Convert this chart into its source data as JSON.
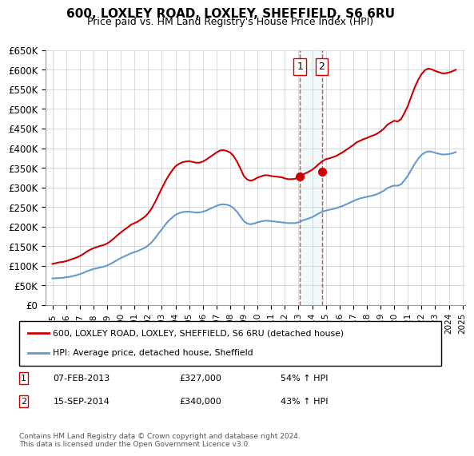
{
  "title": "600, LOXLEY ROAD, LOXLEY, SHEFFIELD, S6 6RU",
  "subtitle": "Price paid vs. HM Land Registry's House Price Index (HPI)",
  "ylabel_ticks": [
    "£0",
    "£50K",
    "£100K",
    "£150K",
    "£200K",
    "£250K",
    "£300K",
    "£350K",
    "£400K",
    "£450K",
    "£500K",
    "£550K",
    "£600K",
    "£650K"
  ],
  "ylim": [
    0,
    650000
  ],
  "yticks": [
    0,
    50000,
    100000,
    150000,
    200000,
    250000,
    300000,
    350000,
    400000,
    450000,
    500000,
    550000,
    600000,
    650000
  ],
  "background_color": "#ffffff",
  "grid_color": "#cccccc",
  "sale1_date": "07-FEB-2013",
  "sale1_price": 327000,
  "sale1_label": "1",
  "sale1_pct": "54% ↑ HPI",
  "sale2_date": "15-SEP-2014",
  "sale2_price": 340000,
  "sale2_label": "2",
  "sale2_pct": "43% ↑ HPI",
  "sale1_x": 2013.1,
  "sale2_x": 2014.7,
  "legend_line1": "600, LOXLEY ROAD, LOXLEY, SHEFFIELD, S6 6RU (detached house)",
  "legend_line2": "HPI: Average price, detached house, Sheffield",
  "footer": "Contains HM Land Registry data © Crown copyright and database right 2024.\nThis data is licensed under the Open Government Licence v3.0.",
  "red_color": "#cc0000",
  "blue_color": "#6699cc",
  "hpi_x": [
    1995.0,
    1995.25,
    1995.5,
    1995.75,
    1996.0,
    1996.25,
    1996.5,
    1996.75,
    1997.0,
    1997.25,
    1997.5,
    1997.75,
    1998.0,
    1998.25,
    1998.5,
    1998.75,
    1999.0,
    1999.25,
    1999.5,
    1999.75,
    2000.0,
    2000.25,
    2000.5,
    2000.75,
    2001.0,
    2001.25,
    2001.5,
    2001.75,
    2002.0,
    2002.25,
    2002.5,
    2002.75,
    2003.0,
    2003.25,
    2003.5,
    2003.75,
    2004.0,
    2004.25,
    2004.5,
    2004.75,
    2005.0,
    2005.25,
    2005.5,
    2005.75,
    2006.0,
    2006.25,
    2006.5,
    2006.75,
    2007.0,
    2007.25,
    2007.5,
    2007.75,
    2008.0,
    2008.25,
    2008.5,
    2008.75,
    2009.0,
    2009.25,
    2009.5,
    2009.75,
    2010.0,
    2010.25,
    2010.5,
    2010.75,
    2011.0,
    2011.25,
    2011.5,
    2011.75,
    2012.0,
    2012.25,
    2012.5,
    2012.75,
    2013.0,
    2013.25,
    2013.5,
    2013.75,
    2014.0,
    2014.25,
    2014.5,
    2014.75,
    2015.0,
    2015.25,
    2015.5,
    2015.75,
    2016.0,
    2016.25,
    2016.5,
    2016.75,
    2017.0,
    2017.25,
    2017.5,
    2017.75,
    2018.0,
    2018.25,
    2018.5,
    2018.75,
    2019.0,
    2019.25,
    2019.5,
    2019.75,
    2020.0,
    2020.25,
    2020.5,
    2020.75,
    2021.0,
    2021.25,
    2021.5,
    2021.75,
    2022.0,
    2022.25,
    2022.5,
    2022.75,
    2023.0,
    2023.25,
    2023.5,
    2023.75,
    2024.0,
    2024.25,
    2024.5
  ],
  "hpi_y": [
    68000,
    68500,
    69000,
    69500,
    71000,
    72000,
    74000,
    76000,
    79000,
    82000,
    86000,
    89000,
    92000,
    94000,
    96000,
    98000,
    101000,
    105000,
    110000,
    115000,
    120000,
    124000,
    128000,
    132000,
    135000,
    138000,
    142000,
    146000,
    152000,
    160000,
    170000,
    182000,
    193000,
    205000,
    215000,
    223000,
    230000,
    234000,
    237000,
    238000,
    238000,
    237000,
    236000,
    236000,
    238000,
    241000,
    245000,
    249000,
    253000,
    256000,
    257000,
    256000,
    253000,
    247000,
    238000,
    226000,
    214000,
    208000,
    206000,
    208000,
    211000,
    213000,
    215000,
    215000,
    214000,
    213000,
    212000,
    211000,
    210000,
    209000,
    209000,
    209000,
    211000,
    215000,
    218000,
    221000,
    224000,
    229000,
    234000,
    238000,
    241000,
    243000,
    245000,
    247000,
    250000,
    253000,
    257000,
    261000,
    265000,
    269000,
    272000,
    274000,
    276000,
    278000,
    280000,
    283000,
    287000,
    292000,
    298000,
    302000,
    305000,
    304000,
    308000,
    318000,
    330000,
    345000,
    360000,
    373000,
    383000,
    389000,
    392000,
    391000,
    388000,
    386000,
    384000,
    384000,
    385000,
    387000,
    390000
  ],
  "property_x": [
    1995.0,
    1995.25,
    1995.5,
    1995.75,
    1996.0,
    1996.25,
    1996.5,
    1996.75,
    1997.0,
    1997.25,
    1997.5,
    1997.75,
    1998.0,
    1998.25,
    1998.5,
    1998.75,
    1999.0,
    1999.25,
    1999.5,
    1999.75,
    2000.0,
    2000.25,
    2000.5,
    2000.75,
    2001.0,
    2001.25,
    2001.5,
    2001.75,
    2002.0,
    2002.25,
    2002.5,
    2002.75,
    2003.0,
    2003.25,
    2003.5,
    2003.75,
    2004.0,
    2004.25,
    2004.5,
    2004.75,
    2005.0,
    2005.25,
    2005.5,
    2005.75,
    2006.0,
    2006.25,
    2006.5,
    2006.75,
    2007.0,
    2007.25,
    2007.5,
    2007.75,
    2008.0,
    2008.25,
    2008.5,
    2008.75,
    2009.0,
    2009.25,
    2009.5,
    2009.75,
    2010.0,
    2010.25,
    2010.5,
    2010.75,
    2011.0,
    2011.25,
    2011.5,
    2011.75,
    2012.0,
    2012.25,
    2012.5,
    2012.75,
    2013.0,
    2013.25,
    2013.5,
    2013.75,
    2014.0,
    2014.25,
    2014.5,
    2014.75,
    2015.0,
    2015.25,
    2015.5,
    2015.75,
    2016.0,
    2016.25,
    2016.5,
    2016.75,
    2017.0,
    2017.25,
    2017.5,
    2017.75,
    2018.0,
    2018.25,
    2018.5,
    2018.75,
    2019.0,
    2019.25,
    2019.5,
    2019.75,
    2020.0,
    2020.25,
    2020.5,
    2020.75,
    2021.0,
    2021.25,
    2021.5,
    2021.75,
    2022.0,
    2022.25,
    2022.5,
    2022.75,
    2023.0,
    2023.25,
    2023.5,
    2023.75,
    2024.0,
    2024.25,
    2024.5
  ],
  "property_y": [
    105000,
    107000,
    109000,
    110000,
    112000,
    115000,
    118000,
    121000,
    125000,
    130000,
    136000,
    141000,
    145000,
    148000,
    151000,
    153000,
    157000,
    163000,
    170000,
    178000,
    185000,
    192000,
    198000,
    205000,
    209000,
    213000,
    219000,
    225000,
    234000,
    246000,
    262000,
    280000,
    298000,
    315000,
    330000,
    343000,
    354000,
    360000,
    364000,
    366000,
    367000,
    365000,
    363000,
    363000,
    366000,
    371000,
    377000,
    383000,
    389000,
    394000,
    395000,
    393000,
    389000,
    380000,
    366000,
    348000,
    329000,
    320000,
    317000,
    320000,
    325000,
    328000,
    331000,
    331000,
    329000,
    328000,
    327000,
    326000,
    323000,
    321000,
    321000,
    322000,
    327000,
    331000,
    336000,
    340000,
    345000,
    352000,
    360000,
    367000,
    372000,
    374000,
    377000,
    380000,
    385000,
    390000,
    396000,
    402000,
    408000,
    415000,
    419000,
    423000,
    426000,
    430000,
    433000,
    437000,
    443000,
    450000,
    460000,
    465000,
    470000,
    468000,
    474000,
    490000,
    508000,
    532000,
    555000,
    574000,
    589000,
    599000,
    603000,
    601000,
    597000,
    594000,
    591000,
    591000,
    593000,
    596000,
    600000
  ]
}
